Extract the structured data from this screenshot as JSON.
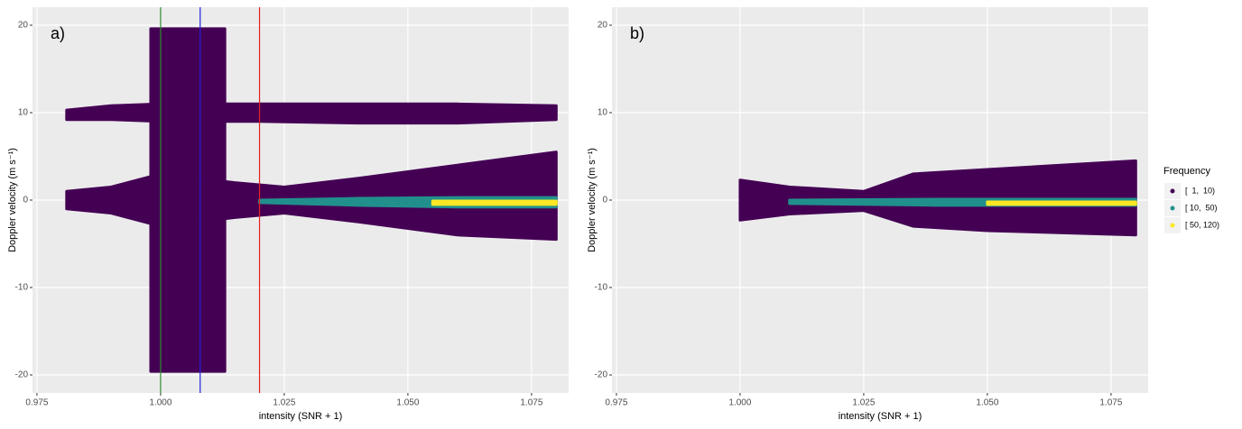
{
  "chart_data": [
    {
      "type": "ribbon",
      "annotation": "a)",
      "xlabel": "intensity (SNR + 1)",
      "ylabel": "Doppler velocity (m s⁻¹)",
      "xlim": [
        0.9741,
        1.0825
      ],
      "ylim": [
        -22.06,
        22.06
      ],
      "xticks": [
        0.975,
        {
          "value": 1,
          "label": "1.000"
        },
        1.025,
        {
          "value": 1.05,
          "label": "1.050"
        },
        1.075
      ],
      "yticks": [
        -20,
        -10,
        0,
        10,
        20
      ],
      "grid": true,
      "vlines": [
        {
          "x": 1,
          "color": "#2e8b2e"
        },
        {
          "x": 1.008,
          "color": "#2222dd"
        },
        {
          "x": 1.02,
          "color": "#e82020"
        }
      ],
      "series": [
        {
          "color": "#440154",
          "x": [
            0.981,
            0.99,
            1.0,
            1.02,
            1.04,
            1.06,
            1.08
          ],
          "ymax": [
            10.3,
            10.8,
            11,
            11,
            11,
            11,
            10.8
          ],
          "ymin": [
            9.2,
            9.2,
            9,
            9,
            8.8,
            8.8,
            9.2
          ]
        },
        {
          "color": "#440154",
          "x": [
            0.998,
            1.013
          ],
          "ymax": [
            19.6,
            19.6
          ],
          "ymin": [
            -19.6,
            -19.6
          ]
        },
        {
          "color": "#440154",
          "x": [
            0.981,
            0.99,
            1.0,
            1.015,
            1.025,
            1.04,
            1.06,
            1.08
          ],
          "ymax": [
            1,
            1.5,
            3,
            2,
            1.5,
            2.5,
            4,
            5.5
          ],
          "ymin": [
            -1,
            -1.5,
            -3,
            -2,
            -1.5,
            -2.5,
            -4,
            -4.5
          ]
        },
        {
          "color": "#21908d",
          "x": [
            1.02,
            1.04,
            1.06,
            1.08
          ],
          "ymax": [
            0,
            0.2,
            0.3,
            0.3
          ],
          "ymin": [
            -0.3,
            -0.6,
            -0.8,
            -0.8
          ]
        },
        {
          "color": "#fde725",
          "x": [
            1.055,
            1.08
          ],
          "ymax": [
            -0.1,
            -0.1
          ],
          "ymin": [
            -0.5,
            -0.5
          ]
        }
      ]
    },
    {
      "type": "ribbon",
      "annotation": "b)",
      "xlabel": "intensity (SNR + 1)",
      "ylabel": "Doppler velocity (m s⁻¹)",
      "xlim": [
        0.9741,
        1.0825
      ],
      "ylim": [
        -22.06,
        22.06
      ],
      "xticks": [
        0.975,
        {
          "value": 1,
          "label": "1.000"
        },
        1.025,
        {
          "value": 1.05,
          "label": "1.050"
        },
        1.075
      ],
      "yticks": [
        -20,
        -10,
        0,
        10,
        20
      ],
      "grid": true,
      "series": [
        {
          "color": "#440154",
          "x": [
            1.0,
            1.01,
            1.025,
            1.035,
            1.05,
            1.08
          ],
          "ymax": [
            2.3,
            1.5,
            1,
            3,
            3.5,
            4.5
          ],
          "ymin": [
            -2.3,
            -1.6,
            -1.2,
            -3,
            -3.5,
            -4
          ]
        },
        {
          "color": "#21908d",
          "x": [
            1.01,
            1.04,
            1.08
          ],
          "ymax": [
            0,
            0.1,
            0.1
          ],
          "ymin": [
            -0.4,
            -0.6,
            -0.6
          ]
        },
        {
          "color": "#fde725",
          "x": [
            1.05,
            1.08
          ],
          "ymax": [
            -0.2,
            -0.2
          ],
          "ymin": [
            -0.5,
            -0.5
          ]
        }
      ],
      "legend": {
        "title": "Frequency",
        "labels": [
          "[  1,  10)",
          "[ 10,  50)",
          "[ 50, 120)"
        ],
        "colors": [
          "#440154",
          "#21908d",
          "#fde725"
        ]
      }
    }
  ]
}
